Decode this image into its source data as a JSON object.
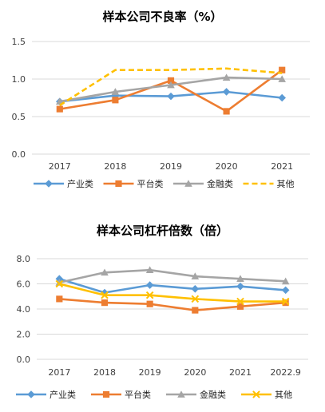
{
  "chart_data": [
    {
      "type": "line",
      "title": "样本公司不良率（%）",
      "categories": [
        "2017",
        "2018",
        "2019",
        "2020",
        "2021"
      ],
      "y_ticks": [
        "0.0",
        "0.5",
        "1.0",
        "1.5"
      ],
      "ylim": [
        0,
        1.5
      ],
      "grid": "horizontal",
      "legend_position": "bottom",
      "series": [
        {
          "name": "产业类",
          "values": [
            0.7,
            0.78,
            0.77,
            0.83,
            0.75
          ],
          "color": "#5B9BD5",
          "marker": "diamond",
          "dash": false
        },
        {
          "name": "平台类",
          "values": [
            0.6,
            0.72,
            0.98,
            0.57,
            1.12
          ],
          "color": "#ED7D31",
          "marker": "square",
          "dash": false
        },
        {
          "name": "金融类",
          "values": [
            0.7,
            0.83,
            0.92,
            1.02,
            1.0
          ],
          "color": "#A5A5A5",
          "marker": "triangle",
          "dash": false
        },
        {
          "name": "其他",
          "values": [
            0.65,
            1.12,
            1.12,
            1.14,
            1.08
          ],
          "color": "#FFC000",
          "marker": "none",
          "dash": true
        }
      ]
    },
    {
      "type": "line",
      "title": "样本公司杠杆倍数（倍）",
      "categories": [
        "2017",
        "2018",
        "2019",
        "2020",
        "2021",
        "2022.9"
      ],
      "y_ticks": [
        "0.0",
        "2.0",
        "4.0",
        "6.0",
        "8.0"
      ],
      "ylim": [
        0,
        8
      ],
      "grid": "horizontal",
      "legend_position": "bottom",
      "series": [
        {
          "name": "产业类",
          "values": [
            6.4,
            5.3,
            5.9,
            5.6,
            5.8,
            5.5
          ],
          "color": "#5B9BD5",
          "marker": "diamond",
          "dash": false
        },
        {
          "name": "平台类",
          "values": [
            4.8,
            4.5,
            4.4,
            3.9,
            4.2,
            4.5
          ],
          "color": "#ED7D31",
          "marker": "square",
          "dash": false
        },
        {
          "name": "金融类",
          "values": [
            6.1,
            6.9,
            7.1,
            6.6,
            6.4,
            6.2
          ],
          "color": "#A5A5A5",
          "marker": "triangle",
          "dash": false
        },
        {
          "name": "其他",
          "values": [
            6.0,
            5.1,
            5.1,
            4.8,
            4.6,
            4.6
          ],
          "color": "#FFC000",
          "marker": "x",
          "dash": false
        }
      ]
    }
  ]
}
